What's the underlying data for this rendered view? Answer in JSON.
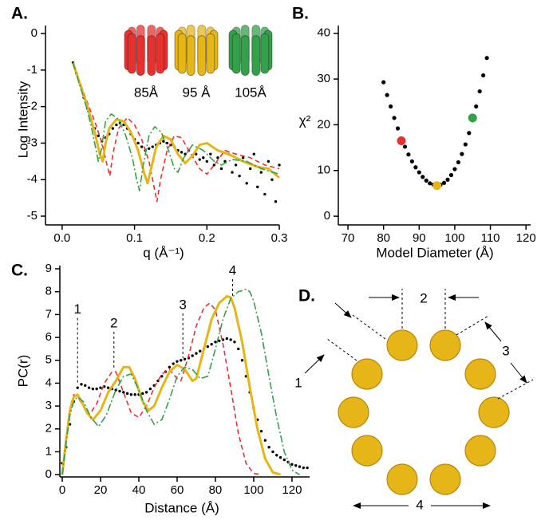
{
  "chart_data": [
    {
      "type": "line",
      "label": "A.",
      "ylabel": "Log Intensity",
      "xlabel": "q (Å⁻¹)",
      "xlim": [
        -0.023,
        0.3
      ],
      "ylim": [
        -5.24,
        0.22
      ],
      "xticks": [
        {
          "value": 0,
          "label": "0.0"
        },
        0.1,
        0.2,
        0.3
      ],
      "yticks": [
        0,
        -1,
        -2,
        -3,
        -4,
        -5
      ],
      "series": [
        {
          "color": "#000000",
          "style": "dots",
          "x": [
            0.015,
            0.02,
            0.025,
            0.03,
            0.035,
            0.04,
            0.045,
            0.05,
            0.055,
            0.06,
            0.065,
            0.07,
            0.075,
            0.08,
            0.085,
            0.09,
            0.095,
            0.1,
            0.105,
            0.11,
            0.115,
            0.12,
            0.125,
            0.13,
            0.135,
            0.14,
            0.145,
            0.15,
            0.155,
            0.16,
            0.165,
            0.17,
            0.175,
            0.18,
            0.185,
            0.19,
            0.195,
            0.2,
            0.205,
            0.21,
            0.215,
            0.22,
            0.225,
            0.23,
            0.235,
            0.24,
            0.245,
            0.25,
            0.255,
            0.26,
            0.265,
            0.27,
            0.275,
            0.28,
            0.285,
            0.29,
            0.295,
            0.3
          ],
          "values": [
            -0.8,
            -1.1,
            -1.4,
            -1.75,
            -2.05,
            -2.35,
            -2.6,
            -2.8,
            -2.95,
            -2.85,
            -2.75,
            -2.6,
            -2.5,
            -2.45,
            -2.5,
            -2.6,
            -2.75,
            -2.9,
            -3.0,
            -3.1,
            -3.2,
            -3.15,
            -3.1,
            -3.05,
            -3.0,
            -2.95,
            -3.0,
            -3.05,
            -3.1,
            -3.2,
            -3.25,
            -3.3,
            -3.2,
            -3.35,
            -3.3,
            -3.45,
            -3.4,
            -3.5,
            -3.3,
            -3.6,
            -3.4,
            -3.7,
            -3.5,
            -3.3,
            -3.8,
            -3.6,
            -3.9,
            -3.4,
            -4.1,
            -3.7,
            -3.3,
            -4.2,
            -3.8,
            -4.4,
            -3.5,
            -4.0,
            -4.6,
            -3.6
          ]
        },
        {
          "name": "85Å",
          "color": "#e8312f",
          "style": "dashed",
          "x": [
            0.015,
            0.025,
            0.035,
            0.045,
            0.055,
            0.062,
            0.066,
            0.07,
            0.078,
            0.09,
            0.1,
            0.11,
            0.12,
            0.127,
            0.131,
            0.136,
            0.145,
            0.155,
            0.165,
            0.175,
            0.19,
            0.2,
            0.21,
            0.225,
            0.24,
            0.26,
            0.28,
            0.3
          ],
          "values": [
            -0.8,
            -1.35,
            -1.9,
            -2.4,
            -3.0,
            -3.6,
            -3.9,
            -3.3,
            -2.6,
            -2.3,
            -2.5,
            -2.9,
            -3.5,
            -4.2,
            -4.6,
            -4.0,
            -3.2,
            -2.8,
            -2.85,
            -3.2,
            -3.7,
            -3.85,
            -3.6,
            -3.2,
            -3.3,
            -3.4,
            -3.6,
            -3.7
          ]
        },
        {
          "name": "95 Å",
          "color": "#e6b517",
          "style": "solid",
          "x": [
            0.015,
            0.025,
            0.035,
            0.045,
            0.052,
            0.056,
            0.06,
            0.065,
            0.075,
            0.085,
            0.095,
            0.105,
            0.113,
            0.118,
            0.123,
            0.13,
            0.14,
            0.15,
            0.16,
            0.17,
            0.18,
            0.19,
            0.2,
            0.215,
            0.23,
            0.25,
            0.27,
            0.285,
            0.3
          ],
          "values": [
            -0.8,
            -1.4,
            -2.0,
            -2.7,
            -3.3,
            -3.5,
            -3.0,
            -2.6,
            -2.35,
            -2.4,
            -2.7,
            -3.2,
            -3.8,
            -4.1,
            -3.7,
            -3.1,
            -2.8,
            -2.9,
            -3.3,
            -3.55,
            -3.35,
            -3.05,
            -3.0,
            -3.2,
            -3.3,
            -3.5,
            -3.65,
            -3.7,
            -3.95
          ]
        },
        {
          "name": "105Å",
          "color": "#35a04a",
          "style": "dashdot",
          "x": [
            0.015,
            0.025,
            0.035,
            0.043,
            0.05,
            0.054,
            0.06,
            0.068,
            0.078,
            0.088,
            0.097,
            0.103,
            0.107,
            0.112,
            0.12,
            0.128,
            0.137,
            0.147,
            0.155,
            0.16,
            0.168,
            0.18,
            0.195,
            0.21,
            0.22,
            0.235,
            0.255,
            0.275,
            0.3
          ],
          "values": [
            -0.8,
            -1.45,
            -2.1,
            -2.8,
            -3.5,
            -3.2,
            -2.4,
            -2.2,
            -2.35,
            -2.8,
            -3.4,
            -4.0,
            -4.3,
            -3.6,
            -2.8,
            -2.55,
            -2.7,
            -3.2,
            -3.7,
            -3.8,
            -3.4,
            -3.05,
            -3.2,
            -3.5,
            -3.6,
            -3.45,
            -3.5,
            -3.7,
            -3.85
          ]
        }
      ]
    },
    {
      "type": "scatter",
      "label": "B.",
      "ylabel": "χ²",
      "xlabel": "Model Diameter (Å)",
      "xlim": [
        67.3,
        121.3
      ],
      "ylim": [
        -1.9,
        41.7
      ],
      "xticks": [
        70,
        80,
        90,
        100,
        110,
        120
      ],
      "yticks": [
        0,
        10,
        20,
        30,
        40
      ],
      "series": [
        {
          "color": "#000000",
          "marker": "small",
          "x": [
            80,
            81,
            82,
            83,
            84,
            85,
            86,
            87,
            88,
            89,
            90,
            91,
            92,
            93,
            94,
            95,
            96,
            97,
            98,
            99,
            100,
            101,
            102,
            103,
            104,
            105,
            106,
            107,
            108,
            109
          ],
          "values": [
            29.3,
            26.5,
            24,
            21.5,
            19.2,
            17,
            15.2,
            13.5,
            12,
            10.7,
            9.6,
            8.6,
            7.8,
            7.2,
            6.9,
            6.7,
            6.9,
            7.3,
            8.0,
            9.0,
            10.3,
            11.8,
            13.6,
            15.7,
            18.2,
            21,
            24,
            27.3,
            30.8,
            34.6
          ]
        },
        {
          "color": "#e8312f",
          "marker": "large",
          "x": [
            85
          ],
          "values": [
            16.5
          ]
        },
        {
          "color": "#e6b517",
          "marker": "large",
          "x": [
            95
          ],
          "values": [
            6.7
          ]
        },
        {
          "color": "#35a04a",
          "marker": "large",
          "x": [
            105
          ],
          "values": [
            21.5
          ]
        }
      ]
    },
    {
      "type": "line",
      "label": "C.",
      "ylabel": "PC(r)",
      "xlabel": "Distance (Å)",
      "xlim": [
        -1.25,
        129.2
      ],
      "ylim": [
        -0.1,
        9.14
      ],
      "xticks": [
        0,
        20,
        40,
        60,
        80,
        100,
        120
      ],
      "yticks": [
        0,
        1,
        2,
        3,
        4,
        5,
        6,
        7,
        8,
        9
      ],
      "annotations": [
        {
          "text": "1",
          "x": 8,
          "y": 7.2,
          "y_to": 4.0
        },
        {
          "text": "2",
          "x": 27,
          "y": 6.6,
          "y_to": 4.6
        },
        {
          "text": "3",
          "x": 63,
          "y": 7.4,
          "y_to": 5.1
        },
        {
          "text": "4",
          "x": 89,
          "y": 8.9,
          "y_to": 7.8
        }
      ],
      "series": [
        {
          "color": "#000000",
          "style": "dots",
          "x": [
            0,
            2,
            4,
            6,
            8,
            10,
            12,
            14,
            16,
            18,
            20,
            22,
            24,
            26,
            28,
            30,
            32,
            34,
            36,
            38,
            40,
            42,
            44,
            46,
            48,
            50,
            52,
            54,
            56,
            58,
            60,
            62,
            64,
            66,
            68,
            70,
            72,
            74,
            76,
            78,
            80,
            82,
            84,
            86,
            88,
            90,
            92,
            94,
            96,
            98,
            100,
            102,
            104,
            106,
            108,
            110,
            112,
            114,
            116,
            118,
            120,
            122,
            124,
            126,
            128
          ],
          "values": [
            0.5,
            1.2,
            2.2,
            3.2,
            3.8,
            3.95,
            3.9,
            3.8,
            3.75,
            3.75,
            3.8,
            3.85,
            3.8,
            3.75,
            3.7,
            3.65,
            3.6,
            3.55,
            3.5,
            3.5,
            3.5,
            3.55,
            3.6,
            3.75,
            3.9,
            4.1,
            4.3,
            4.5,
            4.7,
            4.85,
            4.95,
            5.0,
            5.05,
            5.1,
            5.2,
            5.3,
            5.4,
            5.5,
            5.6,
            5.7,
            5.8,
            5.85,
            5.9,
            5.95,
            5.9,
            5.8,
            5.5,
            5.0,
            4.3,
            3.6,
            2.9,
            2.4,
            1.9,
            1.5,
            1.2,
            1.0,
            0.85,
            0.75,
            0.65,
            0.55,
            0.45,
            0.4,
            0.35,
            0.3,
            0.3
          ]
        },
        {
          "color": "#e8312f",
          "style": "dashed",
          "x": [
            0,
            2,
            4,
            6,
            8,
            11,
            14,
            18,
            22,
            26,
            28,
            32,
            36,
            40,
            44,
            48,
            52,
            56,
            60,
            62,
            66,
            70,
            74,
            77,
            80,
            84,
            88,
            92,
            96,
            100,
            104
          ],
          "values": [
            0,
            1.6,
            2.9,
            3.5,
            3.4,
            3.0,
            2.6,
            3.1,
            4.0,
            4.5,
            4.5,
            3.6,
            2.7,
            2.5,
            3.0,
            3.8,
            4.4,
            4.6,
            4.2,
            4.1,
            5.2,
            6.5,
            7.3,
            7.5,
            7.2,
            5.7,
            3.8,
            1.8,
            0.5,
            0.05,
            0
          ]
        },
        {
          "color": "#e6b517",
          "style": "solid",
          "x": [
            0,
            2,
            4,
            6,
            8,
            10,
            13,
            16,
            20,
            24,
            28,
            32,
            35,
            38,
            42,
            45,
            48,
            52,
            56,
            60,
            64,
            68,
            70,
            74,
            78,
            82,
            86,
            88,
            90,
            94,
            98,
            102,
            106,
            110,
            114
          ],
          "values": [
            0,
            1.5,
            2.8,
            3.4,
            3.5,
            3.2,
            2.7,
            2.4,
            2.8,
            3.6,
            4.1,
            4.7,
            4.7,
            4.2,
            3.2,
            2.8,
            3.0,
            3.8,
            4.5,
            4.8,
            4.6,
            4.1,
            4.2,
            5.5,
            6.8,
            7.5,
            7.8,
            7.75,
            7.3,
            5.8,
            3.8,
            2.0,
            0.7,
            0.1,
            0
          ]
        },
        {
          "color": "#35a04a",
          "style": "dashdot",
          "x": [
            0,
            2,
            4,
            6,
            8,
            11,
            15,
            19,
            23,
            28,
            32,
            36,
            40,
            44,
            48,
            52,
            56,
            60,
            64,
            68,
            72,
            76,
            80,
            84,
            88,
            92,
            96,
            98,
            100,
            104,
            108,
            112,
            116,
            120,
            124
          ],
          "values": [
            0,
            1.4,
            2.6,
            3.2,
            3.4,
            3.2,
            2.5,
            2.1,
            2.6,
            3.7,
            4.3,
            4.4,
            3.7,
            2.8,
            2.2,
            2.4,
            3.3,
            4.3,
            4.7,
            4.6,
            4.2,
            4.3,
            5.5,
            6.8,
            7.7,
            8.0,
            8.1,
            8.0,
            7.6,
            6.2,
            4.3,
            2.5,
            1.0,
            0.2,
            0
          ]
        }
      ]
    }
  ],
  "diagram": {
    "label": "D.",
    "dimensions": [
      "1",
      "2",
      "3",
      "4"
    ]
  }
}
